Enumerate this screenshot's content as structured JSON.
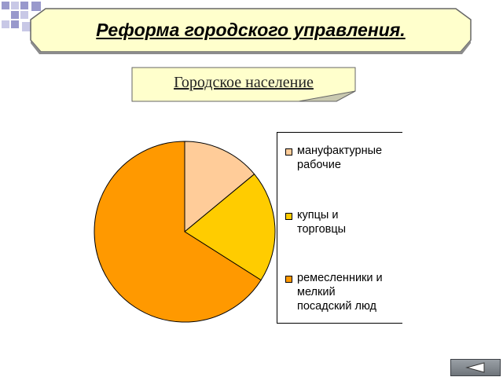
{
  "slide": {
    "title": "Реформа городского управления.",
    "subtitle": "Городское население"
  },
  "chart_data": {
    "type": "pie",
    "categories": [
      "мануфактурные рабочие",
      "купцы и торговцы",
      "ремесленники и мелкий посадский люд"
    ],
    "values": [
      14,
      20,
      66
    ],
    "colors": [
      "#ffcc99",
      "#ffcc00",
      "#ff9900"
    ],
    "legend": {
      "position": "right",
      "entries": [
        "мануфактурные\nрабочие",
        "купцы и\nторговцы",
        "ремесленники и\nмелкий\nпосадский люд"
      ]
    }
  },
  "navigation": {
    "back_icon": "back-arrow-icon"
  }
}
